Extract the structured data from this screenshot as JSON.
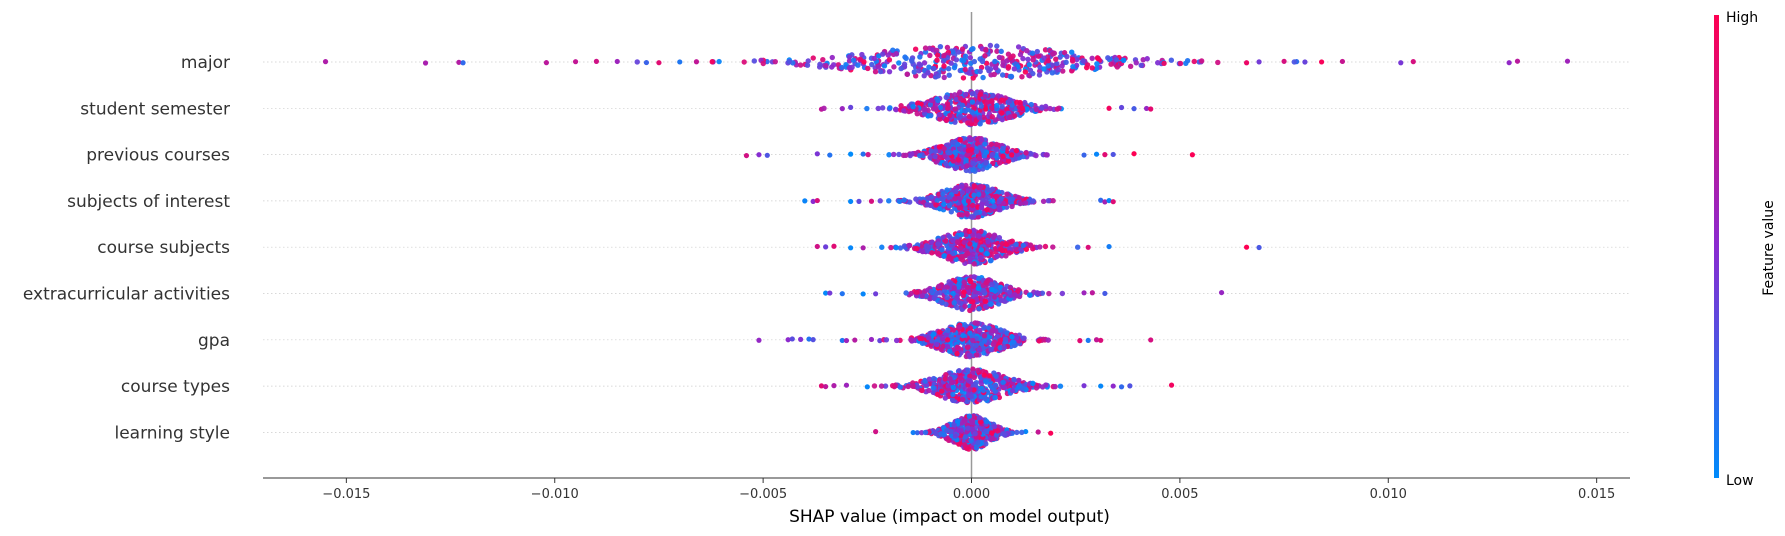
{
  "chart_data": {
    "type": "scatter",
    "subtype": "shap-beeswarm",
    "xlabel": "SHAP value (impact on model output)",
    "xlim": [
      -0.017,
      0.0158
    ],
    "xticks": [
      -0.015,
      -0.01,
      -0.005,
      0.0,
      0.005,
      0.01,
      0.015
    ],
    "xtick_labels": [
      "−0.015",
      "−0.010",
      "−0.005",
      "0.000",
      "0.005",
      "0.010",
      "0.015"
    ],
    "colorbar": {
      "label": "Feature value",
      "high_label": "High",
      "low_label": "Low",
      "high_color": "#ff0052",
      "mid_color": "#8a2bd0",
      "low_color": "#008bfb"
    },
    "features": [
      {
        "name": "major",
        "min": -0.0155,
        "max": 0.0143,
        "spread": 0.0043,
        "outliers": [
          -0.0155,
          -0.0131,
          -0.0123,
          -0.0122,
          -0.0102,
          -0.0095,
          -0.009,
          -0.0085,
          -0.0078,
          -0.0075,
          -0.007,
          -0.0066,
          -0.0062,
          0.0066,
          0.0069,
          0.0075,
          0.0078,
          0.008,
          0.0084,
          0.0089,
          0.0103,
          0.0106,
          0.0129,
          0.0131,
          0.0143
        ]
      },
      {
        "name": "student semester",
        "min": -0.0036,
        "max": 0.0043,
        "spread": 0.0016,
        "outliers": [
          -0.0036,
          -0.0031,
          -0.0029,
          0.0033,
          0.0036,
          0.0039,
          0.0042,
          0.0043
        ]
      },
      {
        "name": "previous courses",
        "min": -0.0054,
        "max": 0.0053,
        "spread": 0.0012,
        "outliers": [
          -0.0054,
          -0.0051,
          -0.0049,
          -0.0037,
          -0.0034,
          -0.0029,
          -0.0026,
          0.0027,
          0.003,
          0.0032,
          0.0034,
          0.0039,
          0.0053
        ]
      },
      {
        "name": "subjects of interest",
        "min": -0.004,
        "max": 0.0034,
        "spread": 0.0012,
        "outliers": [
          -0.004,
          -0.0038,
          -0.0037,
          -0.0029,
          -0.0027,
          -0.0024,
          0.0031,
          0.0032,
          0.0033,
          0.0034
        ]
      },
      {
        "name": "course subjects",
        "min": -0.0037,
        "max": 0.0069,
        "spread": 0.0013,
        "outliers": [
          -0.0037,
          -0.0035,
          -0.0033,
          -0.0029,
          -0.0026,
          0.0028,
          0.0033,
          0.0066,
          0.0069
        ]
      },
      {
        "name": "extracurricular activities",
        "min": -0.0035,
        "max": 0.006,
        "spread": 0.0012,
        "outliers": [
          -0.0035,
          -0.0034,
          -0.0031,
          -0.0026,
          -0.0023,
          0.0027,
          0.0029,
          0.0032,
          0.006
        ]
      },
      {
        "name": "gpa",
        "min": -0.0051,
        "max": 0.0043,
        "spread": 0.0013,
        "outliers": [
          -0.0051,
          -0.0044,
          -0.0043,
          -0.0041,
          -0.0039,
          -0.0038,
          -0.0031,
          -0.003,
          -0.0028,
          -0.0024,
          -0.0022,
          0.0026,
          0.0028,
          0.003,
          0.0031,
          0.0043
        ]
      },
      {
        "name": "course types",
        "min": -0.0036,
        "max": 0.0048,
        "spread": 0.0014,
        "outliers": [
          -0.0036,
          -0.0035,
          -0.0033,
          -0.003,
          -0.0025,
          0.0027,
          0.0031,
          0.0034,
          0.0036,
          0.0038,
          0.0048
        ]
      },
      {
        "name": "learning style",
        "min": -0.0023,
        "max": 0.0019,
        "spread": 0.0008,
        "outliers": [
          -0.0023,
          -0.0014,
          -0.0013,
          0.0013,
          0.0016,
          0.0019
        ]
      }
    ]
  }
}
